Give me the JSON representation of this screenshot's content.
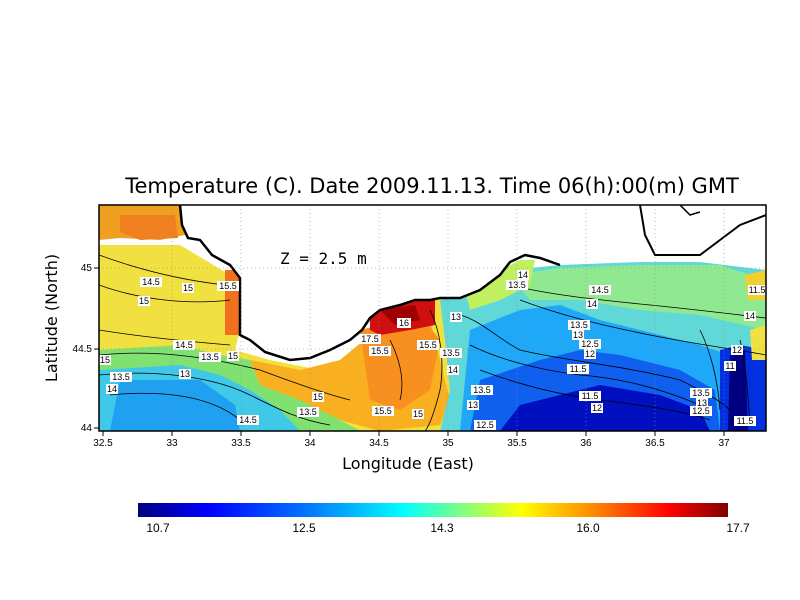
{
  "title": "Temperature (C). Date 2009.11.13. Time 06(h):00(m) GMT",
  "depth_label": "Z = 2.5 m",
  "x_axis": {
    "label": "Longitude (East)",
    "range": [
      32.5,
      37.3
    ],
    "ticks": [
      "32.5",
      "33",
      "33.5",
      "34",
      "34.5",
      "35",
      "35.5",
      "36",
      "36.5",
      "37"
    ]
  },
  "y_axis": {
    "label": "Latitude (North)",
    "range": [
      44.0,
      45.4
    ],
    "ticks": [
      "44",
      "44.5",
      "45"
    ]
  },
  "colorbar": {
    "min": 10.7,
    "max": 17.7,
    "tick_labels": [
      "10.7",
      "12.5",
      "14.3",
      "16.0",
      "17.7"
    ],
    "colors": [
      "#000080",
      "#0000ff",
      "#0080ff",
      "#00ffff",
      "#80ff80",
      "#ffff00",
      "#ff8000",
      "#ff0000",
      "#800000"
    ]
  },
  "contour_labels": [
    {
      "text": "14.5"
    },
    {
      "text": "15"
    },
    {
      "text": "15.5"
    },
    {
      "text": "15"
    },
    {
      "text": "14.5"
    },
    {
      "text": "13.5"
    },
    {
      "text": "15"
    },
    {
      "text": "15"
    },
    {
      "text": "13.5"
    },
    {
      "text": "14"
    },
    {
      "text": "13"
    },
    {
      "text": "14.5"
    },
    {
      "text": "13.5"
    },
    {
      "text": "16"
    },
    {
      "text": "17.5"
    },
    {
      "text": "15.5"
    },
    {
      "text": "15.5"
    },
    {
      "text": "13.5"
    },
    {
      "text": "13"
    },
    {
      "text": "14"
    },
    {
      "text": "14"
    },
    {
      "text": "13.5"
    },
    {
      "text": "13.5"
    },
    {
      "text": "13"
    },
    {
      "text": "15"
    },
    {
      "text": "15.5"
    },
    {
      "text": "15"
    },
    {
      "text": "12.5"
    },
    {
      "text": "14.5"
    },
    {
      "text": "14"
    },
    {
      "text": "13.5"
    },
    {
      "text": "13"
    },
    {
      "text": "12.5"
    },
    {
      "text": "12"
    },
    {
      "text": "11.5"
    },
    {
      "text": "11.5"
    },
    {
      "text": "12"
    },
    {
      "text": "13.5"
    },
    {
      "text": "13"
    },
    {
      "text": "12.5"
    },
    {
      "text": "11.5"
    },
    {
      "text": "12"
    },
    {
      "text": "11"
    },
    {
      "text": "14"
    },
    {
      "text": "11.5"
    }
  ]
}
